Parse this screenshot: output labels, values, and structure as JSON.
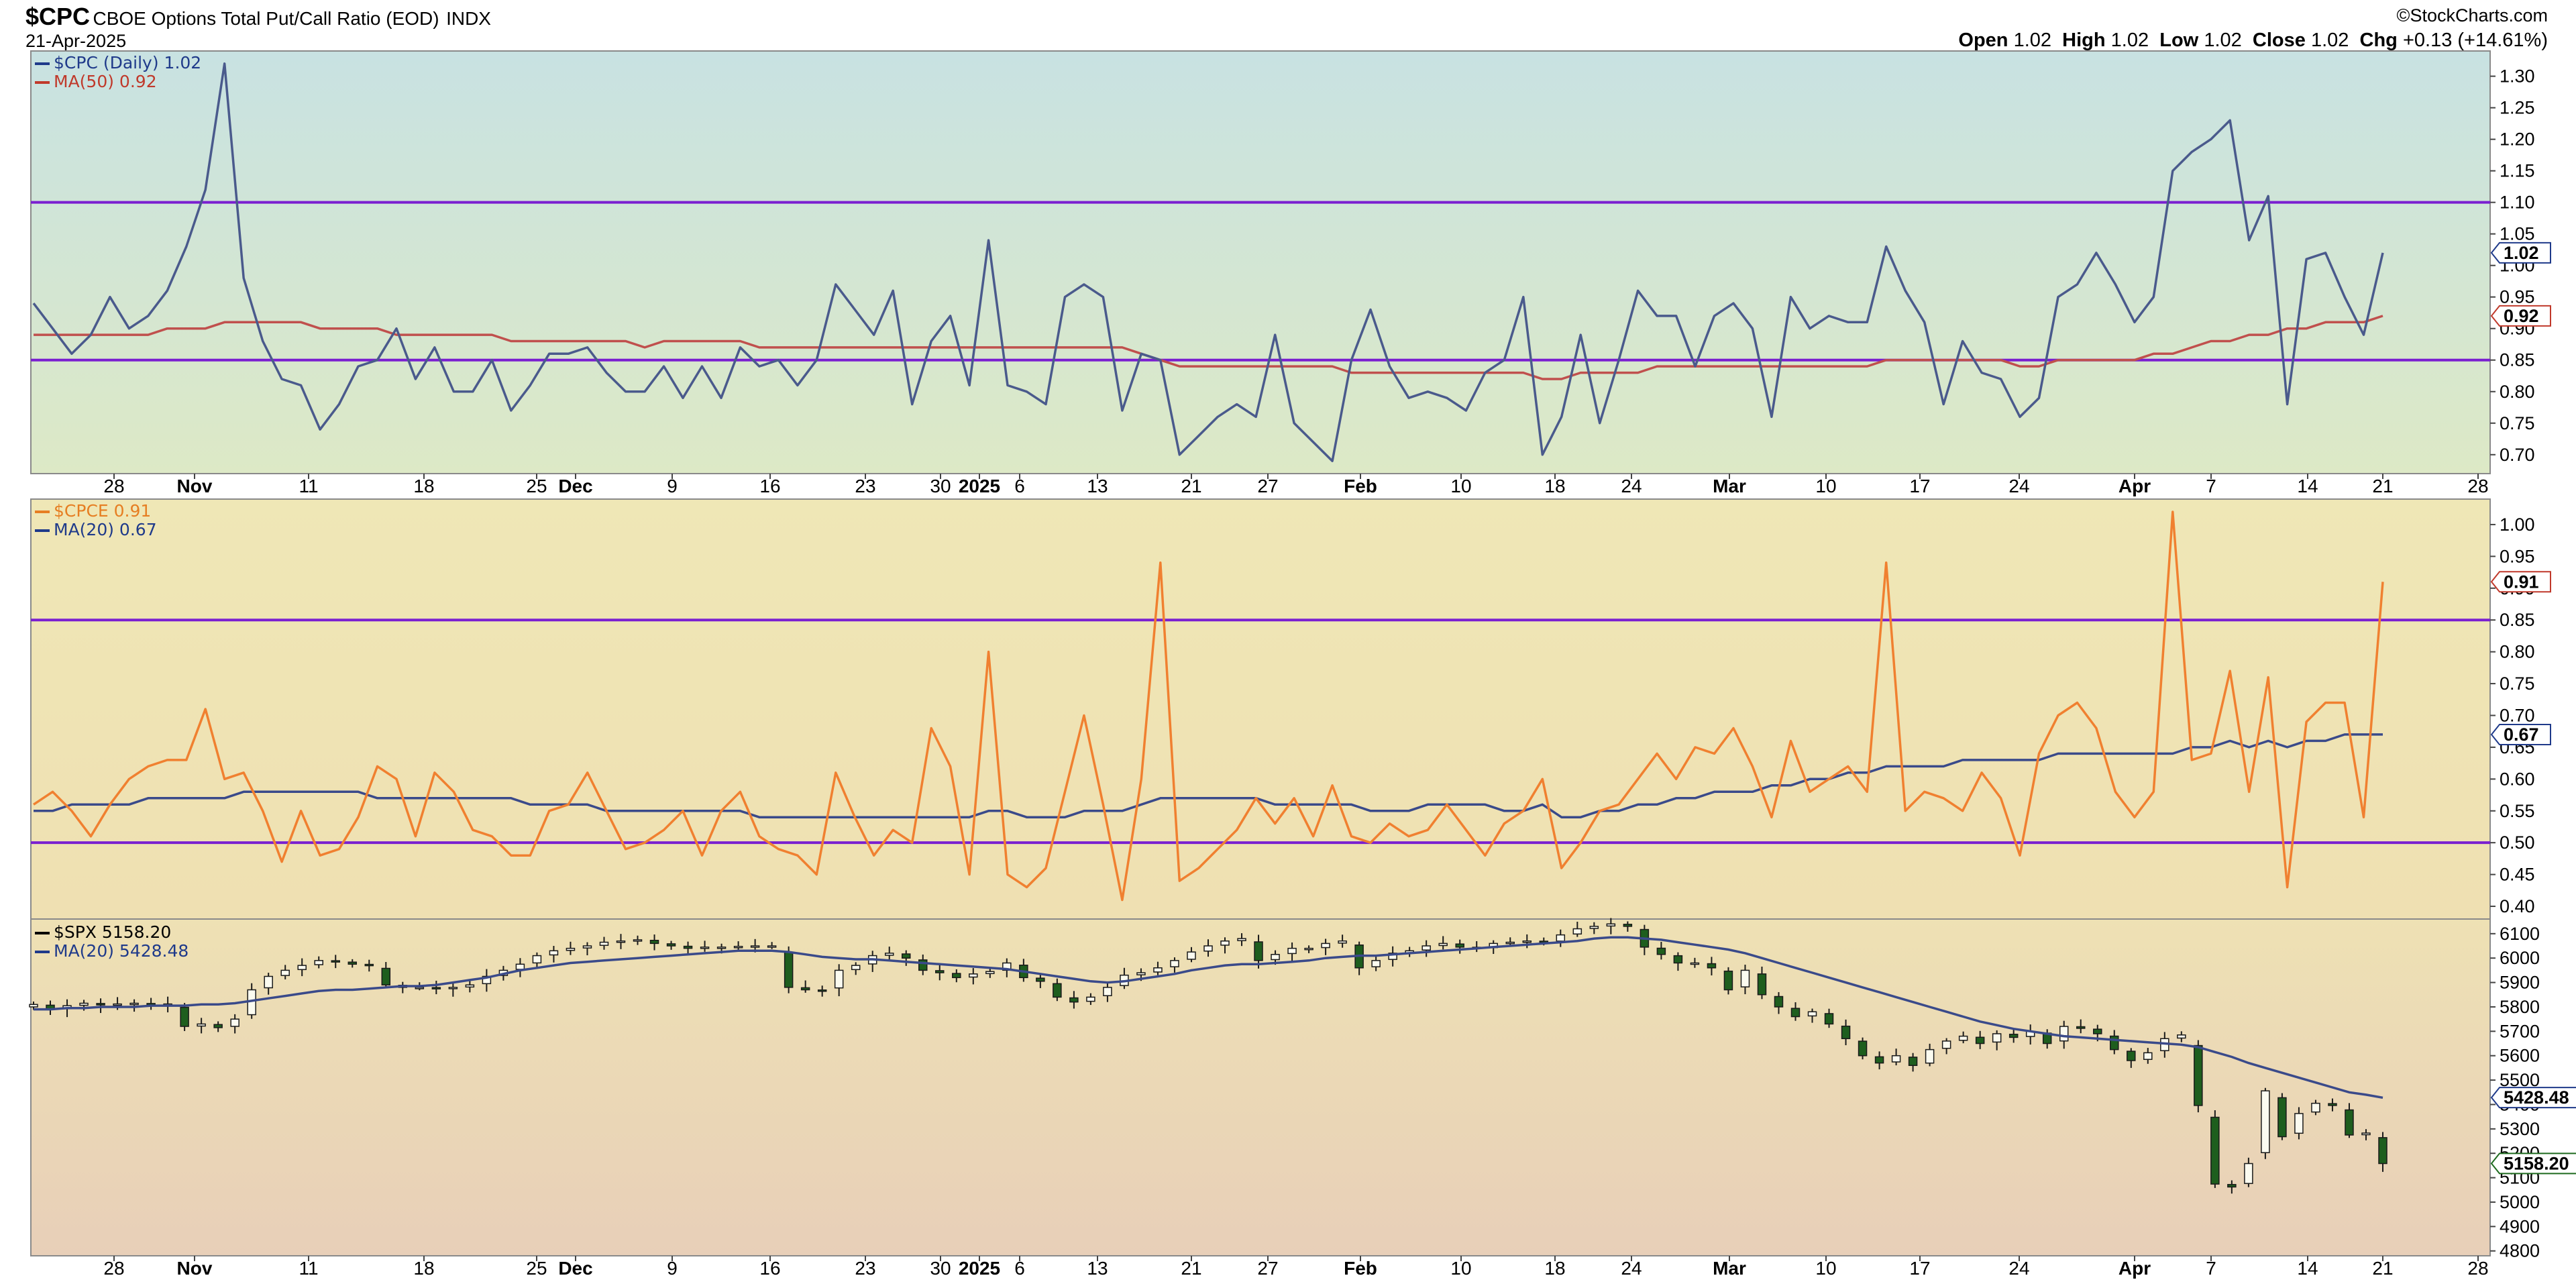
{
  "header": {
    "symbol": "$CPC",
    "name": "CBOE Options Total Put/Call Ratio (EOD)",
    "exchange": "INDX",
    "date": "21-Apr-2025",
    "watermark": "StockCharts.com",
    "open_label": "Open",
    "open": "1.02",
    "high_label": "High",
    "high": "1.02",
    "low_label": "Low",
    "low": "1.02",
    "close_label": "Close",
    "close": "1.02",
    "chg_label": "Chg",
    "chg": "+0.13 (+14.61%)"
  },
  "x_axis": {
    "ticks": [
      "28",
      "Nov",
      "11",
      "18",
      "25",
      "Dec",
      "9",
      "16",
      "23",
      "30",
      "2025",
      "6",
      "13",
      "21",
      "27",
      "Feb",
      "10",
      "18",
      "24",
      "Mar",
      "10",
      "17",
      "24",
      "Apr",
      "7",
      "14",
      "21",
      "28"
    ],
    "bold_ticks": [
      "Nov",
      "Dec",
      "2025",
      "Feb",
      "Mar",
      "Apr"
    ]
  },
  "chart_data": [
    {
      "type": "line",
      "title": "$CPC (Daily) 1.02",
      "series": [
        {
          "name": "$CPC (Daily) 1.02",
          "color": "#4a5a8c",
          "values": [
            0.94,
            0.9,
            0.86,
            0.89,
            0.95,
            0.9,
            0.92,
            0.96,
            1.03,
            1.12,
            1.32,
            0.98,
            0.88,
            0.82,
            0.81,
            0.74,
            0.78,
            0.84,
            0.85,
            0.9,
            0.82,
            0.87,
            0.8,
            0.8,
            0.85,
            0.77,
            0.81,
            0.86,
            0.86,
            0.87,
            0.83,
            0.8,
            0.8,
            0.84,
            0.79,
            0.84,
            0.79,
            0.87,
            0.84,
            0.85,
            0.81,
            0.85,
            0.97,
            0.93,
            0.89,
            0.96,
            0.78,
            0.88,
            0.92,
            0.81,
            1.04,
            0.81,
            0.8,
            0.78,
            0.95,
            0.97,
            0.95,
            0.77,
            0.86,
            0.85,
            0.7,
            0.73,
            0.76,
            0.78,
            0.76,
            0.89,
            0.75,
            0.72,
            0.69,
            0.85,
            0.93,
            0.84,
            0.79,
            0.8,
            0.79,
            0.77,
            0.83,
            0.85,
            0.95,
            0.7,
            0.76,
            0.89,
            0.75,
            0.85,
            0.96,
            0.92,
            0.92,
            0.84,
            0.92,
            0.94,
            0.9,
            0.76,
            0.95,
            0.9,
            0.92,
            0.91,
            0.91,
            1.03,
            0.96,
            0.91,
            0.78,
            0.88,
            0.83,
            0.82,
            0.76,
            0.79,
            0.95,
            0.97,
            1.02,
            0.97,
            0.91,
            0.95,
            1.15,
            1.18,
            1.2,
            1.23,
            1.04,
            1.11,
            0.78,
            1.01,
            1.02,
            0.95,
            0.89,
            1.02
          ]
        },
        {
          "name": "MA(50) 0.92",
          "color": "#c0504d",
          "values": [
            0.89,
            0.89,
            0.89,
            0.89,
            0.89,
            0.89,
            0.89,
            0.9,
            0.9,
            0.9,
            0.91,
            0.91,
            0.91,
            0.91,
            0.91,
            0.9,
            0.9,
            0.9,
            0.9,
            0.89,
            0.89,
            0.89,
            0.89,
            0.89,
            0.89,
            0.88,
            0.88,
            0.88,
            0.88,
            0.88,
            0.88,
            0.88,
            0.87,
            0.88,
            0.88,
            0.88,
            0.88,
            0.88,
            0.87,
            0.87,
            0.87,
            0.87,
            0.87,
            0.87,
            0.87,
            0.87,
            0.87,
            0.87,
            0.87,
            0.87,
            0.87,
            0.87,
            0.87,
            0.87,
            0.87,
            0.87,
            0.87,
            0.87,
            0.86,
            0.85,
            0.84,
            0.84,
            0.84,
            0.84,
            0.84,
            0.84,
            0.84,
            0.84,
            0.84,
            0.83,
            0.83,
            0.83,
            0.83,
            0.83,
            0.83,
            0.83,
            0.83,
            0.83,
            0.83,
            0.82,
            0.82,
            0.83,
            0.83,
            0.83,
            0.83,
            0.84,
            0.84,
            0.84,
            0.84,
            0.84,
            0.84,
            0.84,
            0.84,
            0.84,
            0.84,
            0.84,
            0.84,
            0.85,
            0.85,
            0.85,
            0.85,
            0.85,
            0.85,
            0.85,
            0.84,
            0.84,
            0.85,
            0.85,
            0.85,
            0.85,
            0.85,
            0.86,
            0.86,
            0.87,
            0.88,
            0.88,
            0.89,
            0.89,
            0.9,
            0.9,
            0.91,
            0.91,
            0.91,
            0.92
          ]
        }
      ],
      "legend": [
        {
          "text": "$CPC (Daily) 1.02",
          "color": "#1f3a8a"
        },
        {
          "text": "MA(50) 0.92",
          "color": "#c0392b"
        }
      ],
      "ylim": [
        0.67,
        1.34
      ],
      "yticks": [
        "0.70",
        "0.75",
        "0.80",
        "0.85",
        "0.90",
        "0.95",
        "1.00",
        "1.05",
        "1.10",
        "1.15",
        "1.20",
        "1.25",
        "1.30"
      ],
      "hlines": [
        1.1,
        0.85
      ],
      "value_badges": [
        {
          "text": "1.02",
          "value": 1.02,
          "color": "#1f3a8a"
        },
        {
          "text": "0.92",
          "value": 0.92,
          "color": "#c0392b"
        }
      ]
    },
    {
      "type": "line",
      "title": "$CPCE 0.91",
      "series": [
        {
          "name": "$CPCE 0.91",
          "color": "#f08030",
          "values": [
            0.56,
            0.58,
            0.55,
            0.51,
            0.56,
            0.6,
            0.62,
            0.63,
            0.63,
            0.71,
            0.6,
            0.61,
            0.55,
            0.47,
            0.55,
            0.48,
            0.49,
            0.54,
            0.62,
            0.6,
            0.51,
            0.61,
            0.58,
            0.52,
            0.51,
            0.48,
            0.48,
            0.55,
            0.56,
            0.61,
            0.55,
            0.49,
            0.5,
            0.52,
            0.55,
            0.48,
            0.55,
            0.58,
            0.51,
            0.49,
            0.48,
            0.45,
            0.61,
            0.54,
            0.48,
            0.52,
            0.5,
            0.68,
            0.62,
            0.45,
            0.8,
            0.45,
            0.43,
            0.46,
            0.58,
            0.7,
            0.56,
            0.41,
            0.6,
            0.94,
            0.44,
            0.46,
            0.49,
            0.52,
            0.57,
            0.53,
            0.57,
            0.51,
            0.59,
            0.51,
            0.5,
            0.53,
            0.51,
            0.52,
            0.56,
            0.52,
            0.48,
            0.53,
            0.55,
            0.6,
            0.46,
            0.5,
            0.55,
            0.56,
            0.6,
            0.64,
            0.6,
            0.65,
            0.64,
            0.68,
            0.62,
            0.54,
            0.66,
            0.58,
            0.6,
            0.62,
            0.58,
            0.94,
            0.55,
            0.58,
            0.57,
            0.55,
            0.61,
            0.57,
            0.48,
            0.64,
            0.7,
            0.72,
            0.68,
            0.58,
            0.54,
            0.58,
            1.02,
            0.63,
            0.64,
            0.77,
            0.58,
            0.76,
            0.43,
            0.69,
            0.72,
            0.72,
            0.54,
            0.91
          ]
        },
        {
          "name": "MA(20) 0.67",
          "color": "#3a4a8a",
          "values": [
            0.55,
            0.55,
            0.56,
            0.56,
            0.56,
            0.56,
            0.57,
            0.57,
            0.57,
            0.57,
            0.57,
            0.58,
            0.58,
            0.58,
            0.58,
            0.58,
            0.58,
            0.58,
            0.57,
            0.57,
            0.57,
            0.57,
            0.57,
            0.57,
            0.57,
            0.57,
            0.56,
            0.56,
            0.56,
            0.56,
            0.55,
            0.55,
            0.55,
            0.55,
            0.55,
            0.55,
            0.55,
            0.55,
            0.54,
            0.54,
            0.54,
            0.54,
            0.54,
            0.54,
            0.54,
            0.54,
            0.54,
            0.54,
            0.54,
            0.54,
            0.55,
            0.55,
            0.54,
            0.54,
            0.54,
            0.55,
            0.55,
            0.55,
            0.56,
            0.57,
            0.57,
            0.57,
            0.57,
            0.57,
            0.57,
            0.56,
            0.56,
            0.56,
            0.56,
            0.56,
            0.55,
            0.55,
            0.55,
            0.56,
            0.56,
            0.56,
            0.56,
            0.55,
            0.55,
            0.56,
            0.54,
            0.54,
            0.55,
            0.55,
            0.56,
            0.56,
            0.57,
            0.57,
            0.58,
            0.58,
            0.58,
            0.59,
            0.59,
            0.6,
            0.6,
            0.61,
            0.61,
            0.62,
            0.62,
            0.62,
            0.62,
            0.63,
            0.63,
            0.63,
            0.63,
            0.63,
            0.64,
            0.64,
            0.64,
            0.64,
            0.64,
            0.64,
            0.64,
            0.65,
            0.65,
            0.66,
            0.65,
            0.66,
            0.65,
            0.66,
            0.66,
            0.67,
            0.67,
            0.67
          ]
        }
      ],
      "legend": [
        {
          "text": "$CPCE 0.91",
          "color": "#e67e22"
        },
        {
          "text": "MA(20) 0.67",
          "color": "#1f3a8a"
        }
      ],
      "ylim": [
        0.38,
        1.04
      ],
      "yticks": [
        "0.40",
        "0.45",
        "0.50",
        "0.55",
        "0.60",
        "0.65",
        "0.70",
        "0.75",
        "0.80",
        "0.85",
        "0.90",
        "0.95",
        "1.00"
      ],
      "hlines": [
        0.85,
        0.5
      ],
      "value_badges": [
        {
          "text": "0.91",
          "value": 0.91,
          "color": "#c0392b"
        },
        {
          "text": "0.67",
          "value": 0.67,
          "color": "#1f3a8a"
        }
      ]
    },
    {
      "type": "candlestick",
      "title": "$SPX 5158.20",
      "closes": [
        5810,
        5790,
        5805,
        5815,
        5808,
        5812,
        5815,
        5808,
        5812,
        5720,
        5730,
        5715,
        5750,
        5870,
        5925,
        5950,
        5970,
        5990,
        5985,
        5975,
        5970,
        5890,
        5880,
        5880,
        5875,
        5880,
        5890,
        5925,
        5950,
        5975,
        6010,
        6030,
        6040,
        6050,
        6065,
        6070,
        6075,
        6060,
        6050,
        6040,
        6045,
        6045,
        6048,
        6050,
        6050,
        5880,
        5870,
        5865,
        5950,
        5970,
        6010,
        6020,
        6000,
        5950,
        5940,
        5920,
        5935,
        5945,
        5980,
        5920,
        5905,
        5840,
        5820,
        5840,
        5880,
        5930,
        5940,
        5960,
        5990,
        6025,
        6050,
        6070,
        6080,
        5990,
        6015,
        6040,
        6040,
        6060,
        6070,
        5960,
        5990,
        6020,
        6030,
        6050,
        6060,
        6045,
        6040,
        6060,
        6065,
        6070,
        6065,
        6095,
        6120,
        6130,
        6140,
        6130,
        6045,
        6015,
        5980,
        5980,
        5960,
        5870,
        5950,
        5850,
        5800,
        5760,
        5780,
        5730,
        5670,
        5600,
        5570,
        5600,
        5560,
        5625,
        5660,
        5680,
        5650,
        5690,
        5675,
        5700,
        5650,
        5720,
        5712,
        5690,
        5625,
        5580,
        5612,
        5670,
        5685,
        5396,
        5074,
        5062,
        5158,
        5456,
        5268,
        5363,
        5405,
        5396,
        5275,
        5283,
        5158
      ],
      "ma": {
        "name": "MA(20) 5428.48",
        "color": "#3a4a8a",
        "values": [
          5790,
          5790,
          5795,
          5795,
          5800,
          5800,
          5800,
          5805,
          5805,
          5805,
          5810,
          5810,
          5815,
          5825,
          5835,
          5845,
          5855,
          5865,
          5870,
          5870,
          5875,
          5880,
          5885,
          5885,
          5890,
          5900,
          5910,
          5920,
          5935,
          5950,
          5960,
          5970,
          5980,
          5985,
          5990,
          5995,
          6000,
          6005,
          6010,
          6015,
          6020,
          6025,
          6030,
          6030,
          6030,
          6025,
          6015,
          6005,
          6000,
          5995,
          5995,
          5990,
          5985,
          5980,
          5975,
          5970,
          5965,
          5960,
          5955,
          5945,
          5935,
          5925,
          5915,
          5905,
          5900,
          5905,
          5915,
          5925,
          5935,
          5950,
          5960,
          5970,
          5975,
          5975,
          5980,
          5985,
          5990,
          6000,
          6005,
          6010,
          6010,
          6015,
          6020,
          6025,
          6030,
          6035,
          6040,
          6045,
          6050,
          6055,
          6060,
          6065,
          6070,
          6080,
          6085,
          6085,
          6080,
          6075,
          6065,
          6055,
          6045,
          6035,
          6020,
          6000,
          5980,
          5960,
          5940,
          5920,
          5900,
          5880,
          5860,
          5840,
          5820,
          5800,
          5780,
          5760,
          5740,
          5725,
          5710,
          5700,
          5690,
          5680,
          5675,
          5670,
          5665,
          5660,
          5655,
          5650,
          5645,
          5635,
          5615,
          5595,
          5570,
          5550,
          5530,
          5510,
          5490,
          5470,
          5450,
          5440,
          5428
        ]
      },
      "legend": [
        {
          "text": "$SPX 5158.20",
          "color": "#000000"
        },
        {
          "text": "MA(20) 5428.48",
          "color": "#1f3a8a"
        }
      ],
      "ylim": [
        4780,
        6160
      ],
      "yticks": [
        "4800",
        "4900",
        "5000",
        "5100",
        "5200",
        "5300",
        "5400",
        "5500",
        "5600",
        "5700",
        "5800",
        "5900",
        "6000",
        "6100"
      ],
      "value_badges": [
        {
          "text": "5428.48",
          "value": 5428.48,
          "color": "#1f3a8a"
        },
        {
          "text": "5158.20",
          "value": 5158.2,
          "color": "#1f6b1f"
        }
      ]
    }
  ]
}
